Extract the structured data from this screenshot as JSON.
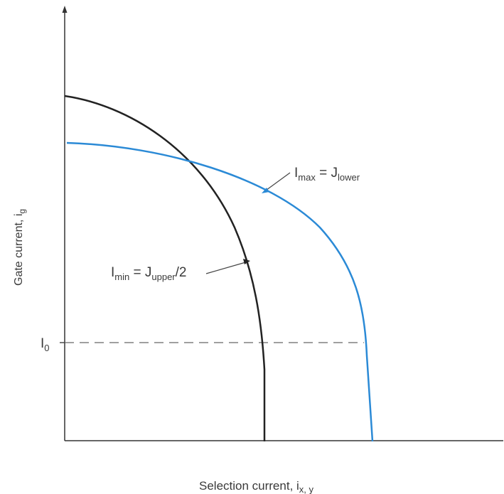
{
  "axes": {
    "x_label": "Selection current, i",
    "x_label_sub": "x, y",
    "y_label": "Gate current, i",
    "y_label_sub": "g"
  },
  "marker": {
    "label": "I",
    "label_sub": "0"
  },
  "curves": [
    {
      "id": "upper",
      "color": "#222222",
      "label": "I",
      "label_sub": "min",
      "label_eq": " = J",
      "label_eq_sub": "upper",
      "label_tail": "/2"
    },
    {
      "id": "lower",
      "color": "#2b8ad6",
      "label": "I",
      "label_sub": "max",
      "label_eq": " = J",
      "label_eq_sub": "lower",
      "label_tail": ""
    }
  ],
  "colors": {
    "axis": "#333333",
    "dashed": "#555555"
  }
}
